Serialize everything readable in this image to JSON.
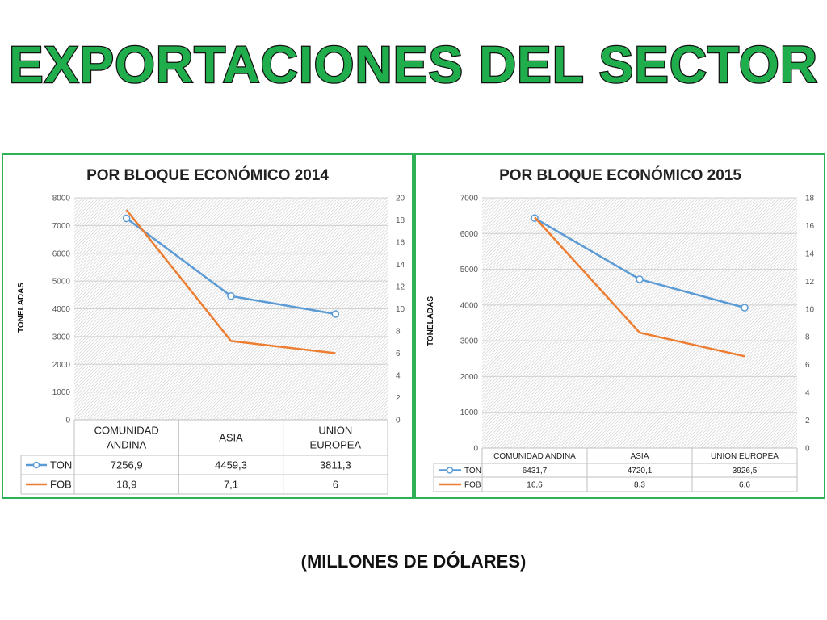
{
  "header": {
    "title": "EXPORTACIONES DEL SECTOR"
  },
  "footer": {
    "note": "(MILLONES DE DÓLARES)"
  },
  "colors": {
    "ton": "#5b9bd5",
    "fob": "#ed7d31",
    "border": "#2eb054",
    "title": "#1fae4b"
  },
  "chart_data": [
    {
      "type": "line",
      "title": "POR BLOQUE ECONÓMICO 2014",
      "ylabel": "TONELADAS",
      "categories": [
        "COMUNIDAD ANDINA",
        "ASIA",
        "UNION EUROPEA"
      ],
      "ylim": [
        0,
        8000
      ],
      "yticks": [
        0,
        1000,
        2000,
        3000,
        4000,
        5000,
        6000,
        7000,
        8000
      ],
      "y2lim": [
        0,
        20
      ],
      "y2ticks": [
        0,
        2,
        4,
        6,
        8,
        10,
        12,
        14,
        16,
        18,
        20
      ],
      "series": [
        {
          "name": "TON",
          "axis": "left",
          "values": [
            7256.9,
            4459.3,
            3811.3
          ],
          "labels": [
            "7256,9",
            "4459,3",
            "3811,3"
          ]
        },
        {
          "name": "FOB",
          "axis": "right",
          "values": [
            18.9,
            7.1,
            6
          ],
          "labels": [
            "18,9",
            "7,1",
            "6"
          ]
        }
      ],
      "grid": true,
      "legend": "data-table"
    },
    {
      "type": "line",
      "title": "POR BLOQUE ECONÓMICO 2015",
      "ylabel": "TONELADAS",
      "categories": [
        "COMUNIDAD ANDINA",
        "ASIA",
        "UNION EUROPEA"
      ],
      "ylim": [
        0,
        7000
      ],
      "yticks": [
        0,
        1000,
        2000,
        3000,
        4000,
        5000,
        6000,
        7000
      ],
      "y2lim": [
        0,
        18
      ],
      "y2ticks": [
        0,
        2,
        4,
        6,
        8,
        10,
        12,
        14,
        16,
        18
      ],
      "series": [
        {
          "name": "TON",
          "axis": "left",
          "values": [
            6431.7,
            4720.1,
            3926.5
          ],
          "labels": [
            "6431,7",
            "4720,1",
            "3926,5"
          ]
        },
        {
          "name": "FOB",
          "axis": "right",
          "values": [
            16.6,
            8.3,
            6.6
          ],
          "labels": [
            "16,6",
            "8,3",
            "6,6"
          ]
        }
      ],
      "grid": true,
      "legend": "data-table"
    }
  ]
}
